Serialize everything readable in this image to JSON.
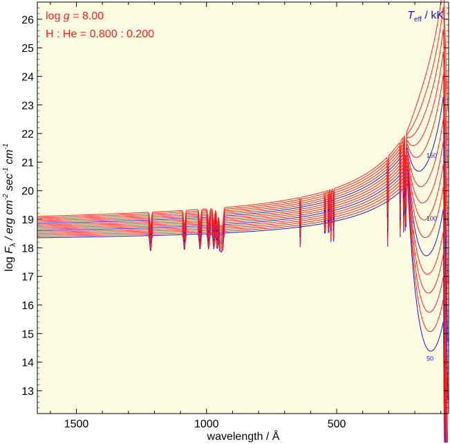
{
  "chart_data": {
    "type": "line",
    "title": "",
    "xlabel": "wavelength / Å",
    "ylabel_parts": {
      "prefix": "log ",
      "symbol": "F",
      "symbol_sub": "λ",
      "unit_prefix": " / erg cm",
      "exp1": "-2",
      "mid": " sec",
      "exp2": "-1",
      "mid2": " cm",
      "exp3": "-1"
    },
    "x_axis": {
      "direction": "reversed",
      "xlim": [
        1650,
        70
      ],
      "ticks": [
        1500,
        1000,
        500
      ],
      "tick_labels": [
        "1500",
        "1000",
        "500"
      ]
    },
    "y_axis": {
      "ylim": [
        12.2,
        26.6
      ],
      "ticks": [
        13,
        14,
        15,
        16,
        17,
        18,
        19,
        20,
        21,
        22,
        23,
        24,
        25,
        26
      ],
      "tick_labels": [
        "13",
        "14",
        "15",
        "16",
        "17",
        "18",
        "19",
        "20",
        "21",
        "22",
        "23",
        "24",
        "25",
        "26"
      ]
    },
    "annotations": {
      "logg_prefix": "log ",
      "logg_symbol": "g",
      "logg_value": " = 8.00",
      "composition": "H : He = 0.800 : 0.200",
      "teff_symbol": "T",
      "teff_sub": "eff",
      "teff_unit": " / kK"
    },
    "curve_labels": [
      {
        "text": "150",
        "x": 155,
        "y": 21.15
      },
      {
        "text": "100",
        "x": 155,
        "y": 18.95
      },
      {
        "text": "50",
        "x": 155,
        "y": 14.05
      }
    ],
    "series_teff_kK": [
      50,
      60,
      70,
      80,
      90,
      100,
      110,
      120,
      130,
      140,
      150,
      160,
      170,
      180,
      190,
      200
    ],
    "highlighted_teff_kK": [
      50,
      100,
      150
    ],
    "absorption_edges_A": [
      1215,
      1085,
      1025,
      992,
      972,
      959,
      950,
      944,
      938,
      640,
      545,
      531,
      522,
      512,
      304,
      256,
      243,
      237,
      234
    ],
    "colors": {
      "background": "#fffde1",
      "model_curve": "#ff1f1f",
      "highlight_curve": "#1414e6",
      "annotation_red": "#ff1f1f",
      "annotation_blue": "#1414e6",
      "axis": "#000000"
    }
  }
}
